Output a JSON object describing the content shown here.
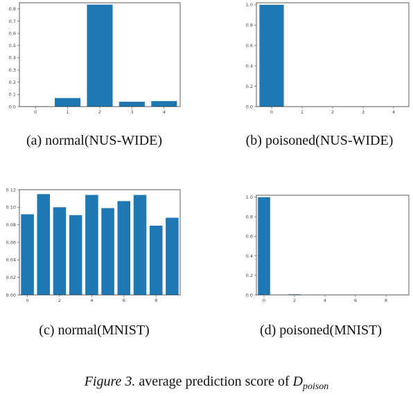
{
  "chart_data": [
    {
      "type": "bar",
      "panel_id": "a",
      "categories": [
        "0",
        "1",
        "2",
        "3",
        "4"
      ],
      "values": [
        0.003,
        0.07,
        0.835,
        0.04,
        0.045
      ],
      "xticks": [
        "0",
        "1",
        "2",
        "3",
        "4"
      ],
      "yticks": [
        "0.0",
        "0.1",
        "0.2",
        "0.3",
        "0.4",
        "0.5",
        "0.6",
        "0.7",
        "0.8"
      ],
      "ylim": [
        0,
        0.85
      ],
      "color": "#1f77b4",
      "caption": "(a)  normal(NUS-WIDE)"
    },
    {
      "type": "bar",
      "panel_id": "b",
      "categories": [
        "0",
        "1",
        "2",
        "3",
        "4"
      ],
      "values": [
        1.0,
        0.0,
        0.0,
        0.0,
        0.0
      ],
      "xticks": [
        "0",
        "1",
        "2",
        "3",
        "4"
      ],
      "yticks": [
        "0.0",
        "0.2",
        "0.4",
        "0.6",
        "0.8",
        "1.0"
      ],
      "ylim": [
        0,
        1.02
      ],
      "color": "#1f77b4",
      "caption": "(b)  poisoned(NUS-WIDE)"
    },
    {
      "type": "bar",
      "panel_id": "c",
      "categories": [
        "0",
        "1",
        "2",
        "3",
        "4",
        "5",
        "6",
        "7",
        "8",
        "9"
      ],
      "values": [
        0.092,
        0.115,
        0.1,
        0.091,
        0.114,
        0.099,
        0.107,
        0.114,
        0.079,
        0.088
      ],
      "xticks": [
        "0",
        "2",
        "4",
        "6",
        "8"
      ],
      "yticks": [
        "0.00",
        "0.02",
        "0.04",
        "0.06",
        "0.08",
        "0.10",
        "0.12"
      ],
      "ylim": [
        0,
        0.12
      ],
      "color": "#1f77b4",
      "caption": "(c)  normal(MNIST)"
    },
    {
      "type": "bar",
      "panel_id": "d",
      "categories": [
        "0",
        "1",
        "2",
        "3",
        "4",
        "5",
        "6",
        "7",
        "8",
        "9"
      ],
      "values": [
        1.0,
        0.0,
        0.006,
        0.0,
        0.0,
        0.0,
        0.0,
        0.0,
        0.0,
        0.0
      ],
      "xticks": [
        "0",
        "2",
        "4",
        "6",
        "8"
      ],
      "yticks": [
        "0.0",
        "0.2",
        "0.4",
        "0.6",
        "0.8",
        "1.0"
      ],
      "ylim": [
        0,
        1.02
      ],
      "color": "#1f77b4",
      "caption": "(d)  poisoned(MNIST)"
    }
  ],
  "figure_caption": {
    "label": "Figure 3.",
    "text": "average prediction score of",
    "math_main": "D",
    "math_sub": "poison"
  }
}
